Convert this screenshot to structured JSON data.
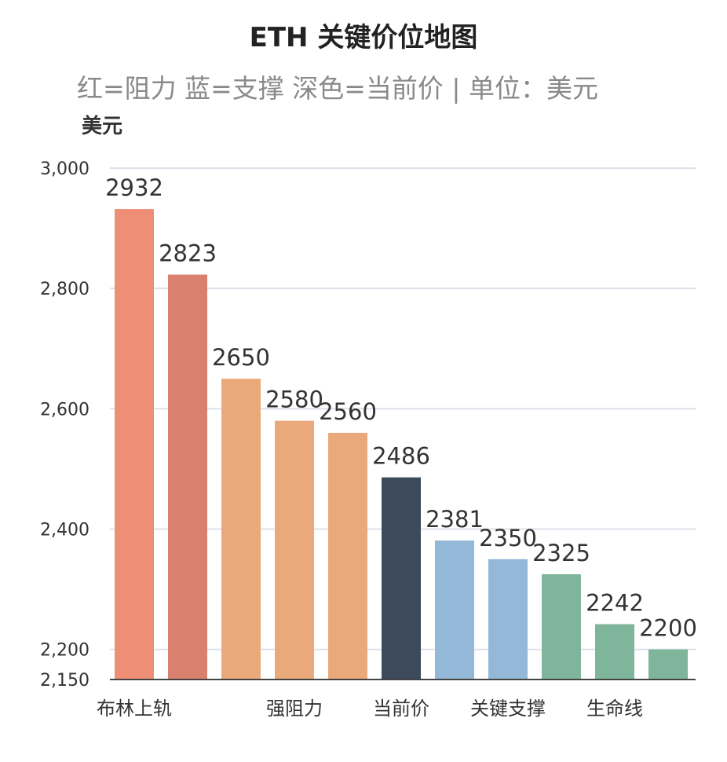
{
  "chart_data": {
    "type": "bar",
    "title": "ETH 关键价位地图",
    "subtitle": "红=阻力 蓝=支撑 深色=当前价 | 单位：美元",
    "ylabel": "美元",
    "ylim": [
      2150,
      3000
    ],
    "yticks": [
      2150,
      2200,
      2400,
      2600,
      2800,
      3000
    ],
    "ytick_labels": [
      "2,150",
      "2,200",
      "2,400",
      "2,600",
      "2,800",
      "3,000"
    ],
    "grid": true,
    "values": [
      2932,
      2823,
      2650,
      2580,
      2560,
      2486,
      2381,
      2350,
      2325,
      2242,
      2200
    ],
    "colors": [
      "#EE8E76",
      "#DA806F",
      "#EAA97B",
      "#EAA97B",
      "#EAA97B",
      "#3D4A5C",
      "#93B8D8",
      "#93B8D8",
      "#7FB59A",
      "#7FB59A",
      "#7FB59A"
    ],
    "category_labels": [
      {
        "index": 0,
        "text": "布林上轨"
      },
      {
        "index": 3,
        "text": "强阻力"
      },
      {
        "index": 5,
        "text": "当前价"
      },
      {
        "index": 7,
        "text": "关键支撑"
      },
      {
        "index": 9,
        "text": "生命线"
      }
    ]
  }
}
